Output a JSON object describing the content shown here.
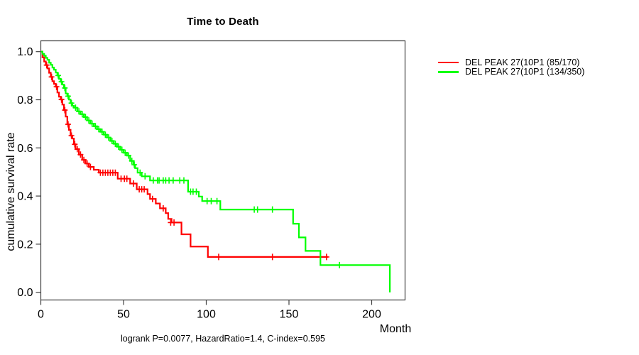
{
  "title": "Time to Death",
  "footer": "logrank P=0.0077, HazardRatio=1.4, C-index=0.595",
  "axes": {
    "xlabel": "Month",
    "ylabel": "cumulative survival rate",
    "xticks": [
      {
        "label": "0",
        "value": 0
      },
      {
        "label": "50",
        "value": 50
      },
      {
        "label": "100",
        "value": 100
      },
      {
        "label": "150",
        "value": 150
      },
      {
        "label": "200",
        "value": 200
      }
    ],
    "yticks": [
      {
        "label": "0.0",
        "value": 0.0
      },
      {
        "label": "0.2",
        "value": 0.2
      },
      {
        "label": "0.4",
        "value": 0.4
      },
      {
        "label": "0.6",
        "value": 0.6
      },
      {
        "label": "0.8",
        "value": 0.8
      },
      {
        "label": "1.0",
        "value": 1.0
      }
    ]
  },
  "chart_data": {
    "type": "line",
    "subtype": "kaplan-meier-step",
    "title": "Time to Death",
    "xlabel": "Month",
    "ylabel": "cumulative survival rate",
    "annotation": "logrank P=0.0077, HazardRatio=1.4, C-index=0.595",
    "xlim": [
      0,
      220
    ],
    "ylim": [
      0.0,
      1.0
    ],
    "grid": false,
    "legend_position": "top-right-outside",
    "frame_color": "#404040",
    "series": [
      {
        "name": "DEL PEAK 27(10P1 (85/170)",
        "color": "#ff0000",
        "start": [
          0,
          1.0
        ],
        "end_time": 173.5,
        "steps": [
          [
            1,
            0.976
          ],
          [
            2,
            0.959
          ],
          [
            3,
            0.944
          ],
          [
            4,
            0.93
          ],
          [
            5,
            0.912
          ],
          [
            6,
            0.895
          ],
          [
            7,
            0.877
          ],
          [
            8,
            0.866
          ],
          [
            9,
            0.854
          ],
          [
            10,
            0.83
          ],
          [
            11,
            0.813
          ],
          [
            12,
            0.801
          ],
          [
            13,
            0.78
          ],
          [
            14,
            0.757
          ],
          [
            15,
            0.73
          ],
          [
            16,
            0.698
          ],
          [
            17,
            0.675
          ],
          [
            18,
            0.651
          ],
          [
            19,
            0.639
          ],
          [
            20,
            0.615
          ],
          [
            21,
            0.595
          ],
          [
            23,
            0.572
          ],
          [
            25,
            0.55
          ],
          [
            27,
            0.535
          ],
          [
            29,
            0.521
          ],
          [
            32,
            0.509
          ],
          [
            35,
            0.497
          ],
          [
            46.5,
            0.472
          ],
          [
            54,
            0.452
          ],
          [
            58,
            0.428
          ],
          [
            64.5,
            0.408
          ],
          [
            66,
            0.388
          ],
          [
            69.5,
            0.369
          ],
          [
            72,
            0.349
          ],
          [
            75.5,
            0.329
          ],
          [
            77,
            0.305
          ],
          [
            79,
            0.29
          ],
          [
            85,
            0.241
          ],
          [
            90.5,
            0.19
          ],
          [
            101,
            0.147
          ]
        ],
        "censors": [
          [
            3.5,
            0.944
          ],
          [
            6.5,
            0.895
          ],
          [
            9.5,
            0.854
          ],
          [
            12.5,
            0.801
          ],
          [
            14.5,
            0.757
          ],
          [
            16.5,
            0.698
          ],
          [
            18.5,
            0.651
          ],
          [
            20.5,
            0.615
          ],
          [
            22,
            0.595
          ],
          [
            24,
            0.572
          ],
          [
            26,
            0.55
          ],
          [
            28,
            0.535
          ],
          [
            30,
            0.521
          ],
          [
            36,
            0.497
          ],
          [
            37.5,
            0.497
          ],
          [
            39,
            0.497
          ],
          [
            40.5,
            0.497
          ],
          [
            42,
            0.497
          ],
          [
            43.5,
            0.497
          ],
          [
            45,
            0.497
          ],
          [
            48.5,
            0.472
          ],
          [
            50.5,
            0.472
          ],
          [
            52,
            0.472
          ],
          [
            56,
            0.452
          ],
          [
            59.5,
            0.428
          ],
          [
            61,
            0.428
          ],
          [
            62.5,
            0.428
          ],
          [
            67.5,
            0.388
          ],
          [
            74,
            0.349
          ],
          [
            78.5,
            0.29
          ],
          [
            80.5,
            0.29
          ],
          [
            107.5,
            0.147
          ],
          [
            140,
            0.147
          ],
          [
            172.7,
            0.147
          ]
        ]
      },
      {
        "name": "DEL PEAK 27(10P1 (134/350)",
        "color": "#00ff00",
        "start": [
          0,
          1.0
        ],
        "end_time": 211,
        "steps": [
          [
            1,
            0.991
          ],
          [
            2,
            0.983
          ],
          [
            3,
            0.974
          ],
          [
            4,
            0.966
          ],
          [
            5,
            0.954
          ],
          [
            6,
            0.945
          ],
          [
            7,
            0.934
          ],
          [
            8,
            0.925
          ],
          [
            9,
            0.913
          ],
          [
            10,
            0.901
          ],
          [
            11,
            0.887
          ],
          [
            12,
            0.875
          ],
          [
            13,
            0.863
          ],
          [
            14,
            0.849
          ],
          [
            15,
            0.826
          ],
          [
            16,
            0.815
          ],
          [
            17,
            0.801
          ],
          [
            18,
            0.786
          ],
          [
            19,
            0.775
          ],
          [
            20,
            0.767
          ],
          [
            22,
            0.752
          ],
          [
            24,
            0.74
          ],
          [
            26,
            0.728
          ],
          [
            28,
            0.714
          ],
          [
            30,
            0.701
          ],
          [
            32,
            0.69
          ],
          [
            34,
            0.678
          ],
          [
            36,
            0.667
          ],
          [
            38,
            0.655
          ],
          [
            40,
            0.643
          ],
          [
            42,
            0.629
          ],
          [
            44,
            0.617
          ],
          [
            46,
            0.605
          ],
          [
            48,
            0.592
          ],
          [
            50,
            0.58
          ],
          [
            52,
            0.568
          ],
          [
            54,
            0.546
          ],
          [
            56,
            0.53
          ],
          [
            57,
            0.516
          ],
          [
            58.5,
            0.497
          ],
          [
            61,
            0.482
          ],
          [
            66,
            0.465
          ],
          [
            89,
            0.418
          ],
          [
            95.5,
            0.398
          ],
          [
            97.5,
            0.379
          ],
          [
            108.5,
            0.344
          ],
          [
            152.5,
            0.285
          ],
          [
            156,
            0.228
          ],
          [
            160,
            0.172
          ],
          [
            169,
            0.113
          ],
          [
            211,
            0.0
          ]
        ],
        "censors": [
          [
            10.5,
            0.901
          ],
          [
            12.5,
            0.875
          ],
          [
            14.5,
            0.849
          ],
          [
            16.5,
            0.815
          ],
          [
            18.5,
            0.786
          ],
          [
            21,
            0.767
          ],
          [
            23,
            0.752
          ],
          [
            25,
            0.74
          ],
          [
            27,
            0.728
          ],
          [
            29,
            0.714
          ],
          [
            31,
            0.701
          ],
          [
            33,
            0.69
          ],
          [
            35,
            0.678
          ],
          [
            37,
            0.667
          ],
          [
            39,
            0.655
          ],
          [
            41,
            0.643
          ],
          [
            43,
            0.629
          ],
          [
            45,
            0.617
          ],
          [
            47,
            0.605
          ],
          [
            49,
            0.592
          ],
          [
            51,
            0.58
          ],
          [
            53,
            0.568
          ],
          [
            55,
            0.546
          ],
          [
            56.5,
            0.53
          ],
          [
            60,
            0.497
          ],
          [
            63,
            0.482
          ],
          [
            68,
            0.465
          ],
          [
            70.5,
            0.465
          ],
          [
            71.5,
            0.465
          ],
          [
            74,
            0.465
          ],
          [
            75.5,
            0.465
          ],
          [
            77.5,
            0.465
          ],
          [
            80,
            0.465
          ],
          [
            84,
            0.465
          ],
          [
            86.5,
            0.465
          ],
          [
            90.5,
            0.418
          ],
          [
            92,
            0.418
          ],
          [
            94,
            0.418
          ],
          [
            100.5,
            0.379
          ],
          [
            103,
            0.379
          ],
          [
            106.5,
            0.379
          ],
          [
            129,
            0.344
          ],
          [
            131,
            0.344
          ],
          [
            140,
            0.344
          ],
          [
            180.5,
            0.113
          ]
        ]
      }
    ]
  },
  "legend": [
    {
      "label": "DEL PEAK 27(10P1 (85/170)",
      "color": "#ff0000"
    },
    {
      "label": "DEL PEAK 27(10P1 (134/350)",
      "color": "#00ff00"
    }
  ]
}
